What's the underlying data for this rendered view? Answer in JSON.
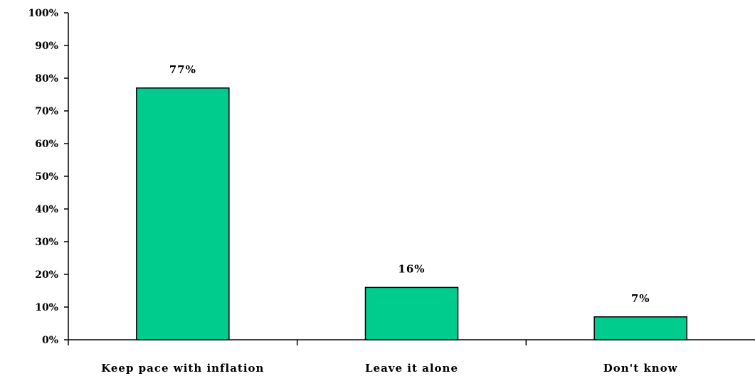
{
  "chart_data": {
    "type": "bar",
    "categories": [
      "Keep pace with inflation",
      "Leave it alone",
      "Don't know"
    ],
    "values": [
      77,
      16,
      7
    ],
    "data_labels": [
      "77%",
      "16%",
      "7%"
    ],
    "ylim": [
      0,
      100
    ],
    "y_ticks": [
      0,
      10,
      20,
      30,
      40,
      50,
      60,
      70,
      80,
      90,
      100
    ],
    "y_tick_labels": [
      "0%",
      "10%",
      "20%",
      "30%",
      "40%",
      "50%",
      "60%",
      "70%",
      "80%",
      "90%",
      "100%"
    ],
    "grid": false,
    "legend": "none",
    "bar_color": "#00CC8E",
    "bar_edge_color": "#000000",
    "axis_color": "#000000"
  }
}
